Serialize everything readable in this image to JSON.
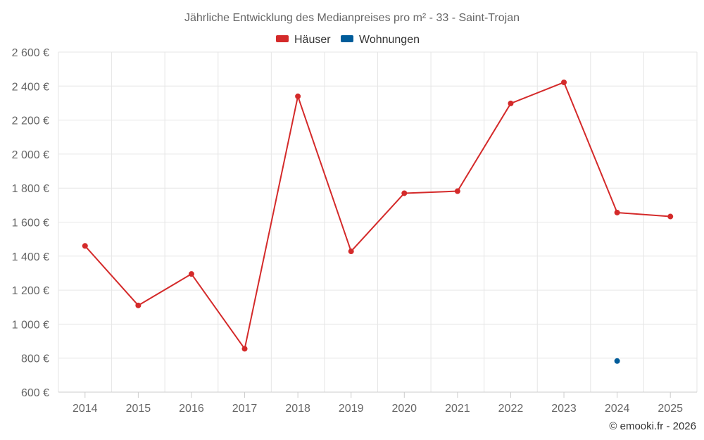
{
  "chart_data": {
    "type": "line",
    "title": "Jährliche Entwicklung des Medianpreises pro m² - 33 - Saint-Trojan",
    "categories": [
      "2014",
      "2015",
      "2016",
      "2017",
      "2018",
      "2019",
      "2020",
      "2021",
      "2022",
      "2023",
      "2024",
      "2025"
    ],
    "series": [
      {
        "name": "Häuser",
        "color": "#d42a2a",
        "values": [
          1460,
          1110,
          1295,
          855,
          2340,
          1428,
          1770,
          1782,
          2298,
          2422,
          1656,
          1633
        ]
      },
      {
        "name": "Wohnungen",
        "color": "#005c9a",
        "values": [
          null,
          null,
          null,
          null,
          null,
          null,
          null,
          null,
          null,
          null,
          783,
          null
        ]
      }
    ],
    "ylim": [
      600,
      2600
    ],
    "yticks": [
      600,
      800,
      1000,
      1200,
      1400,
      1600,
      1800,
      2000,
      2200,
      2400,
      2600
    ],
    "ytick_labels": [
      "600 €",
      "800 €",
      "1 000 €",
      "1 200 €",
      "1 400 €",
      "1 600 €",
      "1 800 €",
      "2 000 €",
      "2 200 €",
      "2 400 €",
      "2 600 €"
    ],
    "grid": true,
    "legend_position": "top-center",
    "xlabel": "",
    "ylabel": ""
  },
  "credit": "© emooki.fr - 2026"
}
